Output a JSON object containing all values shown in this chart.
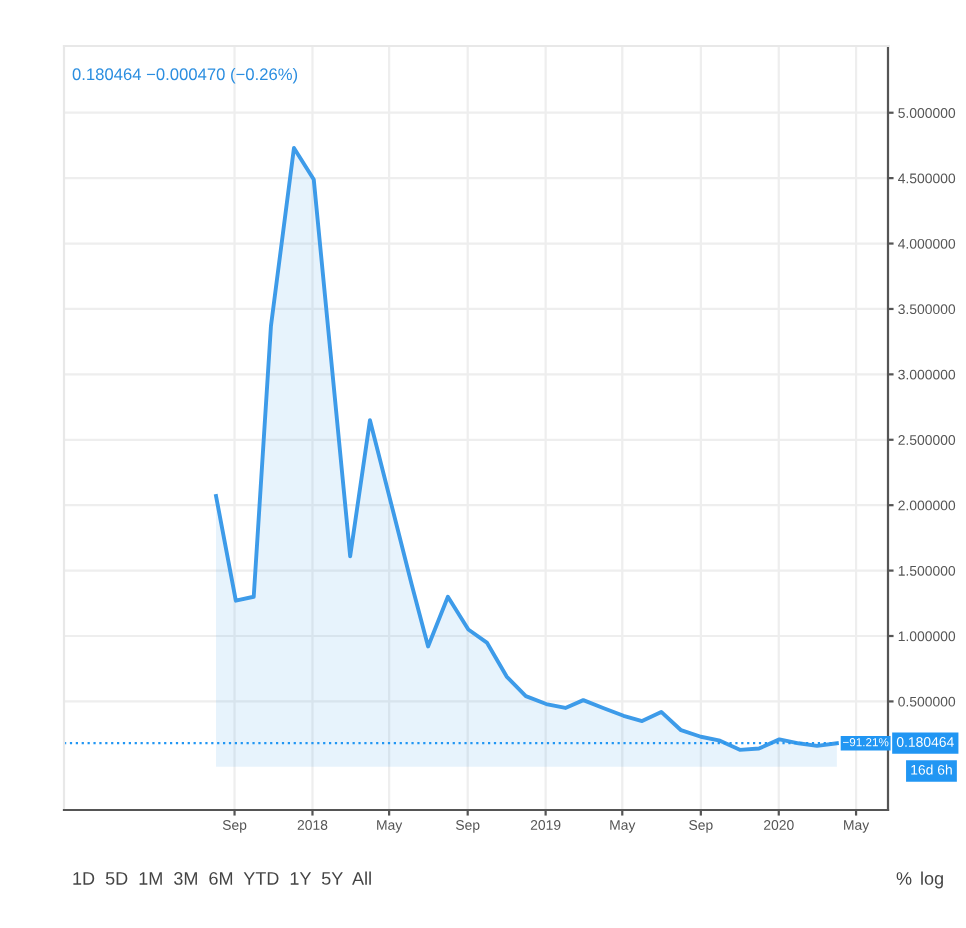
{
  "chart_data": {
    "type": "area",
    "x": [
      "2017-08-03",
      "2017-09-03",
      "2017-10-01",
      "2017-10-28",
      "2017-12-03",
      "2018-01-03",
      "2018-03-01",
      "2018-04-01",
      "2018-06-05",
      "2018-07-01",
      "2018-08-01",
      "2018-09-02",
      "2018-10-01",
      "2018-11-01",
      "2018-12-01",
      "2019-01-02",
      "2019-02-01",
      "2019-03-01",
      "2019-04-01",
      "2019-05-03",
      "2019-06-01",
      "2019-07-01",
      "2019-08-01",
      "2019-09-01",
      "2019-10-01",
      "2019-11-01",
      "2019-12-01",
      "2020-01-02",
      "2020-02-01",
      "2020-03-01",
      "2020-04-01"
    ],
    "series": [
      {
        "color": "#3d9be9",
        "values": [
          2.07,
          1.27,
          1.3,
          3.37,
          4.73,
          4.49,
          1.61,
          2.65,
          1.4,
          0.92,
          1.3,
          1.05,
          0.95,
          0.69,
          0.54,
          0.48,
          0.45,
          0.51,
          0.45,
          0.39,
          0.35,
          0.42,
          0.28,
          0.23,
          0.2,
          0.13,
          0.14,
          0.21,
          0.18,
          0.16,
          0.18
        ]
      }
    ],
    "xlim": [
      "2016-12-08",
      "2020-06-20"
    ],
    "xticks": [
      {
        "value": "2017-09-01",
        "label": "Sep"
      },
      {
        "value": "2018-01-01",
        "label": "2018"
      },
      {
        "value": "2018-05-01",
        "label": "May"
      },
      {
        "value": "2018-09-01",
        "label": "Sep"
      },
      {
        "value": "2019-01-01",
        "label": "2019"
      },
      {
        "value": "2019-05-01",
        "label": "May"
      },
      {
        "value": "2019-09-01",
        "label": "Sep"
      },
      {
        "value": "2020-01-01",
        "label": "2020"
      },
      {
        "value": "2020-05-01",
        "label": "May"
      }
    ],
    "ylim": [
      -0.33,
      5.51
    ],
    "yticks": [
      {
        "value": 0.5,
        "label": "0.500000"
      },
      {
        "value": 1.0,
        "label": "1.000000"
      },
      {
        "value": 1.5,
        "label": "1.500000"
      },
      {
        "value": 2.0,
        "label": "2.000000"
      },
      {
        "value": 2.5,
        "label": "2.500000"
      },
      {
        "value": 3.0,
        "label": "3.000000"
      },
      {
        "value": 3.5,
        "label": "3.500000"
      },
      {
        "value": 4.0,
        "label": "4.000000"
      },
      {
        "value": 4.5,
        "label": "4.500000"
      },
      {
        "value": 5.0,
        "label": "5.000000"
      }
    ],
    "ref_lines": [
      {
        "axis": "y",
        "value": 0.180464,
        "label": "0.180464",
        "color": "#2196f3",
        "line_style": "dotted"
      }
    ],
    "annotations": [
      "0.180464 −0.000470 (−0.26%)",
      "−91.21%",
      "16d 6h",
      "1D  5D  1M  3M  6M  YTD  1Y  5Y  All",
      "%",
      "log"
    ],
    "grid": true,
    "legend": false
  }
}
